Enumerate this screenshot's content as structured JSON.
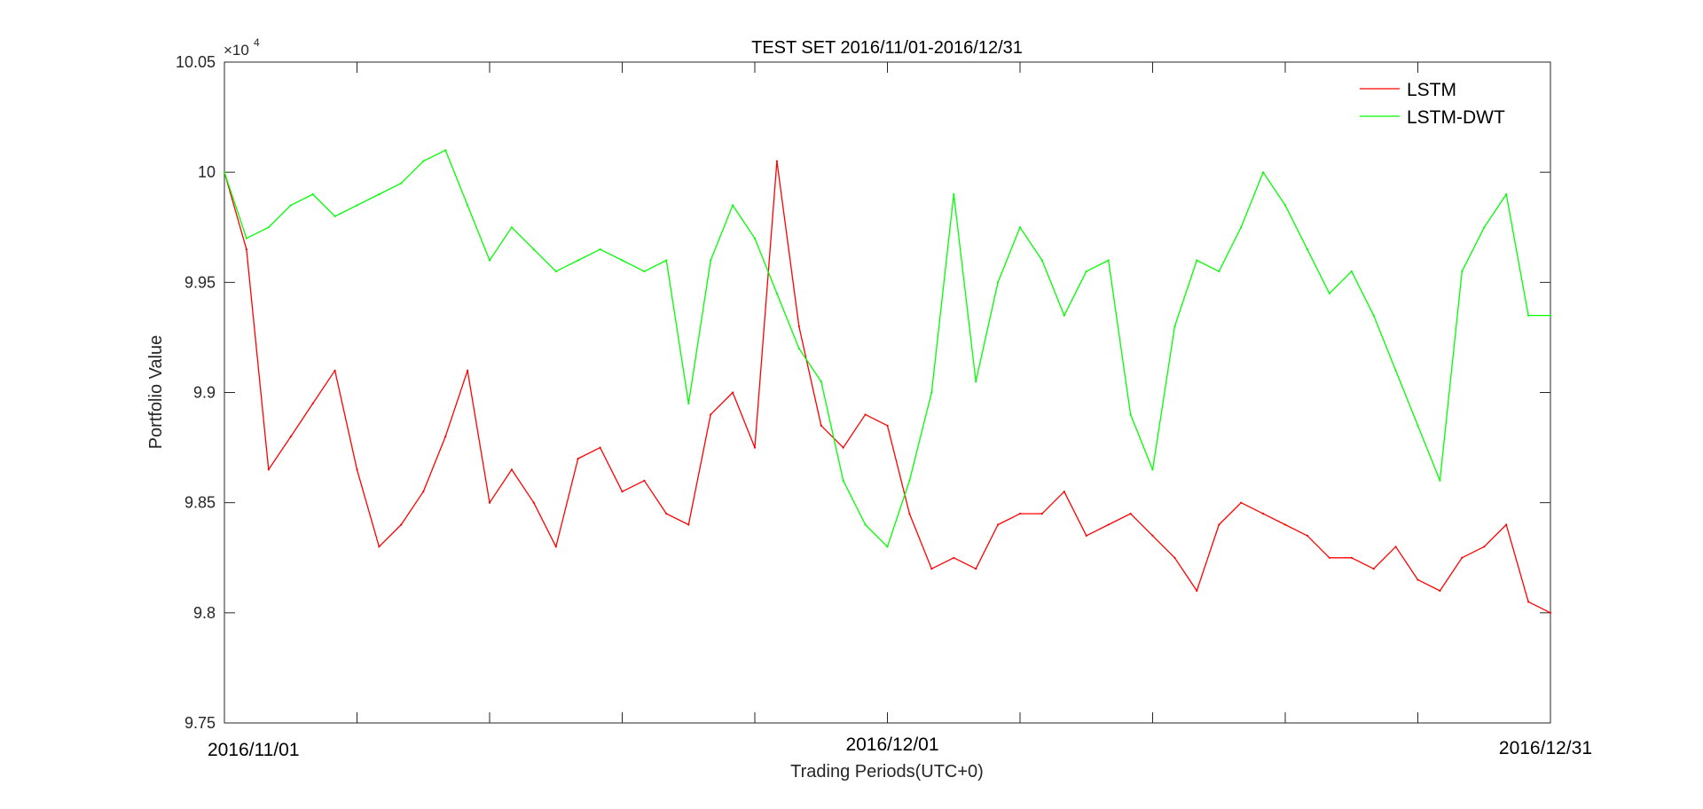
{
  "chart_data": {
    "type": "line",
    "title": "TEST SET 2016/11/01-2016/12/31",
    "xlabel": "Trading Periods(UTC+0)",
    "ylabel": "Portfolio Value",
    "y_exponent_base": "×10",
    "y_exponent_power": "4",
    "ylim": [
      9.75,
      10.05
    ],
    "yticks": [
      "9.75",
      "9.8",
      "9.85",
      "9.9",
      "9.95",
      "10",
      "10.05"
    ],
    "xlim": [
      "2016/11/01",
      "2016/12/31"
    ],
    "x_date_labels": [
      "2016/11/01",
      "2016/12/01",
      "2016/12/31"
    ],
    "grid": false,
    "legend_position": "top-right",
    "series": [
      {
        "name": "LSTM",
        "color": "#ff0000",
        "x": [
          "2016/11/01",
          "2016/11/02",
          "2016/11/03",
          "2016/11/04",
          "2016/11/05",
          "2016/11/06",
          "2016/11/07",
          "2016/11/08",
          "2016/11/09",
          "2016/11/10",
          "2016/11/11",
          "2016/11/12",
          "2016/11/13",
          "2016/11/14",
          "2016/11/15",
          "2016/11/16",
          "2016/11/17",
          "2016/11/18",
          "2016/11/19",
          "2016/11/20",
          "2016/11/21",
          "2016/11/22",
          "2016/11/23",
          "2016/11/24",
          "2016/11/25",
          "2016/11/26",
          "2016/11/27",
          "2016/11/28",
          "2016/11/29",
          "2016/11/30",
          "2016/12/01",
          "2016/12/02",
          "2016/12/03",
          "2016/12/04",
          "2016/12/05",
          "2016/12/06",
          "2016/12/07",
          "2016/12/08",
          "2016/12/09",
          "2016/12/10",
          "2016/12/11",
          "2016/12/12",
          "2016/12/13",
          "2016/12/14",
          "2016/12/15",
          "2016/12/16",
          "2016/12/17",
          "2016/12/18",
          "2016/12/19",
          "2016/12/20",
          "2016/12/21",
          "2016/12/22",
          "2016/12/23",
          "2016/12/24",
          "2016/12/25",
          "2016/12/26",
          "2016/12/27",
          "2016/12/28",
          "2016/12/29",
          "2016/12/30",
          "2016/12/31"
        ],
        "values": [
          10.0,
          9.965,
          9.865,
          9.88,
          9.895,
          9.91,
          9.865,
          9.83,
          9.84,
          9.855,
          9.88,
          9.91,
          9.85,
          9.865,
          9.85,
          9.83,
          9.87,
          9.875,
          9.855,
          9.86,
          9.845,
          9.84,
          9.89,
          9.9,
          9.875,
          10.005,
          9.93,
          9.885,
          9.875,
          9.89,
          9.885,
          9.845,
          9.82,
          9.825,
          9.82,
          9.84,
          9.845,
          9.845,
          9.855,
          9.835,
          9.84,
          9.845,
          9.835,
          9.825,
          9.81,
          9.84,
          9.85,
          9.845,
          9.84,
          9.835,
          9.825,
          9.825,
          9.82,
          9.83,
          9.815,
          9.81,
          9.825,
          9.83,
          9.84,
          9.805,
          9.8
        ]
      },
      {
        "name": "LSTM-DWT",
        "color": "#00ff00",
        "x": [
          "2016/11/01",
          "2016/11/02",
          "2016/11/03",
          "2016/11/04",
          "2016/11/05",
          "2016/11/06",
          "2016/11/07",
          "2016/11/08",
          "2016/11/09",
          "2016/11/10",
          "2016/11/11",
          "2016/11/12",
          "2016/11/13",
          "2016/11/14",
          "2016/11/15",
          "2016/11/16",
          "2016/11/17",
          "2016/11/18",
          "2016/11/19",
          "2016/11/20",
          "2016/11/21",
          "2016/11/22",
          "2016/11/23",
          "2016/11/24",
          "2016/11/25",
          "2016/11/26",
          "2016/11/27",
          "2016/11/28",
          "2016/11/29",
          "2016/11/30",
          "2016/12/01",
          "2016/12/02",
          "2016/12/03",
          "2016/12/04",
          "2016/12/05",
          "2016/12/06",
          "2016/12/07",
          "2016/12/08",
          "2016/12/09",
          "2016/12/10",
          "2016/12/11",
          "2016/12/12",
          "2016/12/13",
          "2016/12/14",
          "2016/12/15",
          "2016/12/16",
          "2016/12/17",
          "2016/12/18",
          "2016/12/19",
          "2016/12/20",
          "2016/12/21",
          "2016/12/22",
          "2016/12/23",
          "2016/12/24",
          "2016/12/25",
          "2016/12/26",
          "2016/12/27",
          "2016/12/28",
          "2016/12/29",
          "2016/12/30",
          "2016/12/31"
        ],
        "values": [
          10.0,
          9.97,
          9.975,
          9.985,
          9.99,
          9.98,
          9.985,
          9.99,
          9.995,
          10.005,
          10.01,
          9.985,
          9.96,
          9.975,
          9.965,
          9.955,
          9.96,
          9.965,
          9.96,
          9.955,
          9.96,
          9.895,
          9.96,
          9.985,
          9.97,
          9.945,
          9.92,
          9.905,
          9.86,
          9.84,
          9.83,
          9.86,
          9.9,
          9.99,
          9.905,
          9.95,
          9.975,
          9.96,
          9.935,
          9.955,
          9.96,
          9.89,
          9.865,
          9.93,
          9.96,
          9.955,
          9.975,
          10.0,
          9.985,
          9.965,
          9.945,
          9.955,
          9.935,
          9.91,
          9.885,
          9.86,
          9.955,
          9.975,
          9.99,
          9.935,
          9.935
        ]
      }
    ]
  }
}
